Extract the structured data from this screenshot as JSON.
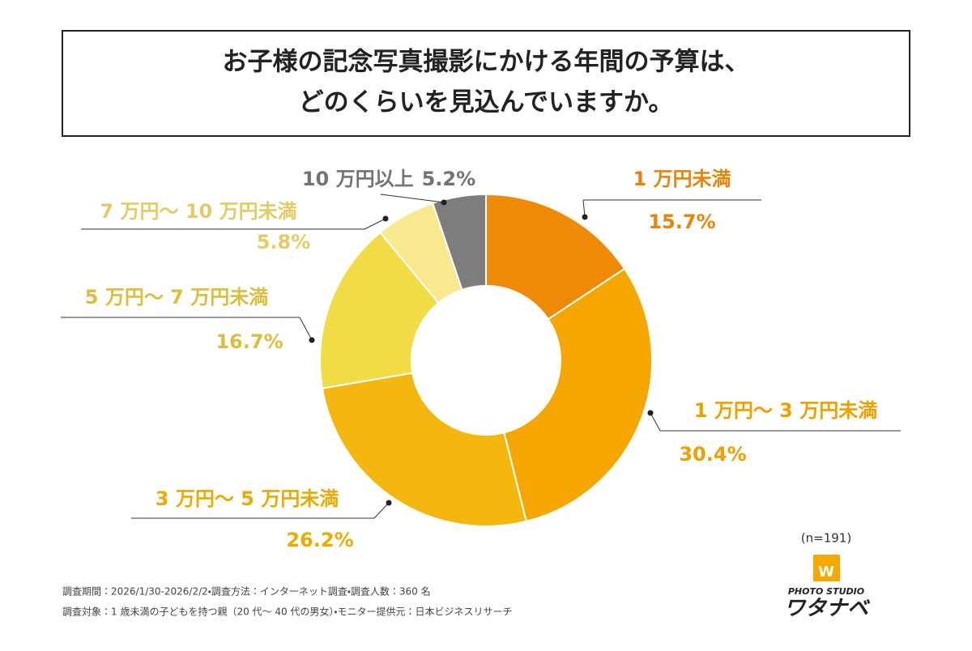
{
  "chart_data": {
    "type": "donut",
    "title": [
      "お子様の記念写真撮影にかける年間の予算は、",
      "どのくらいを見込んでいますか。"
    ],
    "categories": [
      "1 万円未満",
      "1 万円～ 3 万円未満",
      "3 万円～ 5 万円未満",
      "5 万円～ 7 万円未満",
      "7 万円～ 10 万円未満",
      "10 万円以上"
    ],
    "values": [
      15.7,
      30.4,
      26.2,
      16.7,
      5.8,
      5.2
    ],
    "value_labels": [
      "15.7%",
      "30.4%",
      "26.2%",
      "16.7%",
      "5.8%",
      "5.2%"
    ],
    "colors": [
      "#ef8a06",
      "#f6a600",
      "#f4b70e",
      "#f2dc46",
      "#f8e88e",
      "#7e7c7c"
    ],
    "label_colors": [
      "#e9840a",
      "#efa000",
      "#e8ab00",
      "#dcbd3c",
      "#e3cc66",
      "#747474"
    ],
    "note": "(n=191)",
    "footnotes": [
      "調査期間：2026/1/30-2026/2/2・調査方法：インターネット調査・調査人数：360 名",
      "調査対象：1 歳未満の子どもを持つ親（20 代～ 40 代の男女）・モニター提供元：日本ビジネスリサーチ"
    ],
    "logo": {
      "subtitle": "PHOTO STUDIO",
      "name": "ワタナベ"
    }
  }
}
